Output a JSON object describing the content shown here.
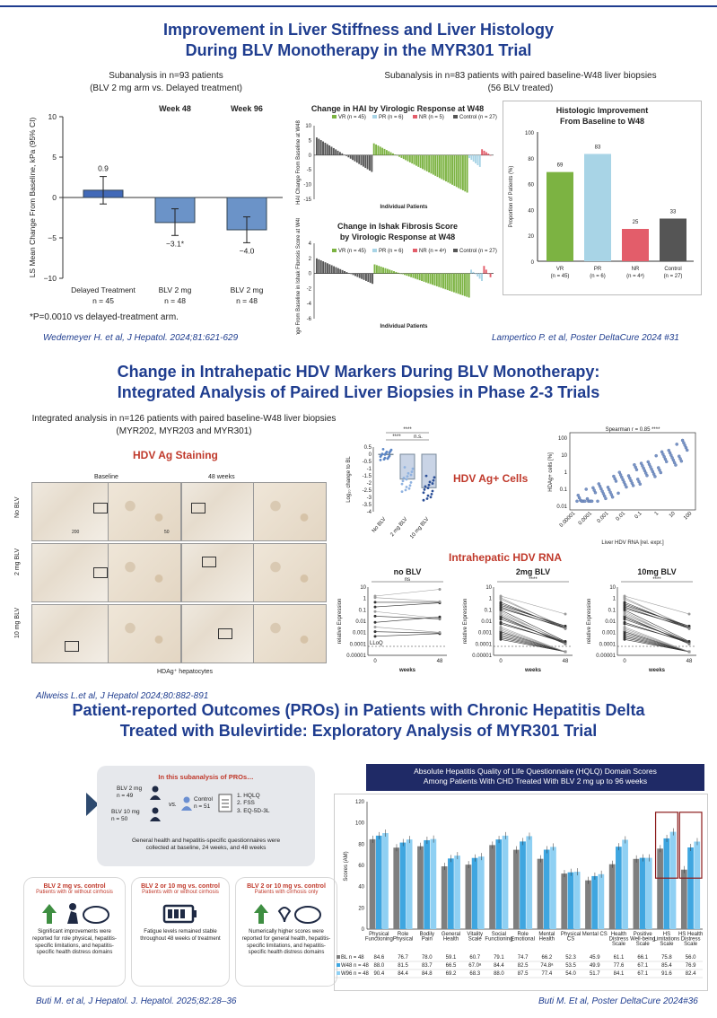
{
  "section1": {
    "title_line1": "Improvement in Liver Stiffness and Liver Histology",
    "title_line2": "During BLV Monotherapy in the MYR301 Trial",
    "left_sub_line1": "Subanalysis in n=93 patients",
    "left_sub_line2": "(BLV 2 mg arm vs. Delayed treatment)",
    "right_sub_line1": "Subanalysis in n=83 patients with paired baseline-W48 liver biopsies",
    "right_sub_line2": "(56 BLV treated)",
    "footnote": "*P=0.0010 vs delayed-treatment arm.",
    "cite_left": "Wedemeyer H. et al, J Hepatol. 2024;81:621-629",
    "cite_right": "Lampertico P. et al, Poster DeltaCure 2024 #31"
  },
  "section2": {
    "title_line1": "Change in Intrahepatic HDV Markers During BLV Monotherapy:",
    "title_line2": "Integrated Analysis of Paired Liver Biopsies in Phase 2-3 Trials",
    "sub_line1": "Integrated analysis in n=126 patients with paired baseline-W48 liver biopsies",
    "sub_line2": "(MYR202, MYR203 and MYR301)",
    "hdv_ag_staining": "HDV Ag Staining",
    "col_baseline": "Baseline",
    "col_48": "48 weeks",
    "row_labels": [
      "No BLV",
      "2 mg BLV",
      "10 mg BLV"
    ],
    "scale1": "200",
    "scale2": "50",
    "caption": "HDAg⁺ hepatocytes",
    "hdv_ag_cells": "HDV Ag+ Cells",
    "intrahepatic_rna": "Intrahepatic HDV RNA",
    "spearman": "Spearman r = 0.85 ****",
    "cite": "Allweiss L.et al, J Hepatol 2024;80:882-891"
  },
  "section3": {
    "title_line1": "Patient-reported Outcomes (PROs) in Patients with Chronic Hepatitis Delta",
    "title_line2": "Treated with Bulevirtide: Exploratory Analysis of MYR301 Trial",
    "box_title": "In this subanalysis of PROs…",
    "blv2": "BLV 2 mg",
    "blv2_n": "n = 49",
    "blv10": "BLV 10 mg",
    "blv10_n": "n = 50",
    "vs": "vs.",
    "control": "Control",
    "control_n": "n = 51",
    "q1": "1.  HQLQ",
    "q2": "2.  FSS",
    "q3": "3.  EQ-5D-3L",
    "box_foot_line1": "General health and hepatitis-specific questionnaires were",
    "box_foot_line2": "collected at baseline, 24 weeks, and 48 weeks",
    "cards": [
      {
        "title": "BLV 2 mg vs. control",
        "sub": "Patients with or without cirrhosis",
        "body": "Significant improvements were reported for role physical, hepatitis-specific limitations, and hepatitis-specific health distress domains"
      },
      {
        "title": "BLV 2 or 10 mg vs. control",
        "sub": "Patients with or without cirrhosis",
        "body": "Fatigue levels remained stable throughout 48 weeks of treatment"
      },
      {
        "title": "BLV 2 or 10 mg vs. control",
        "sub": "Patients with cirrhosis only",
        "body": "Numerically higher scores were reported for general health, hepatitis-specific limitations, and hepatitis-specific health distress domains"
      }
    ],
    "cite_left": "Buti M. et al, J Hepatol. J. Hepatol. 2025;82:28–36",
    "cite_right": "Buti M. Et al, Poster DeltaCure 2024#36"
  },
  "colors": {
    "title_blue": "#1f3d8f",
    "red": "#c0392b",
    "vr_green": "#7cb342",
    "pr_blue": "#a8d4e6",
    "nr_red": "#e35d6a",
    "control_gray": "#555555",
    "bar_blue": "#6b93c8"
  },
  "chart_data": [
    {
      "id": "liver_stiffness",
      "type": "bar",
      "headers": [
        "Week 48",
        "Week 96"
      ],
      "categories": [
        "Delayed Treatment",
        "BLV 2 mg",
        "BLV 2 mg"
      ],
      "n_labels": [
        "n = 45",
        "n = 48",
        "n = 48"
      ],
      "values": [
        0.9,
        -3.1,
        -4.0
      ],
      "value_labels": [
        "0.9",
        "−3.1*",
        "−4.0"
      ],
      "ylabel": "LS Mean Change From Baseline, kPa (95% CI)",
      "ylim": [
        -10,
        10
      ],
      "yticks": [
        "10",
        "5",
        "0",
        "−5",
        "−10"
      ]
    },
    {
      "id": "hai_waterfall",
      "type": "bar",
      "title": "Change in HAI by Virologic Response at W48",
      "legend": [
        "VR (n = 45)",
        "PR (n = 6)",
        "NR (n = 5)",
        "Control (n = 27)"
      ],
      "xlabel": "Individual Patients",
      "ylabel": "HAI Change From Baseline at W48",
      "ylim": [
        -15,
        10
      ],
      "yticks": [
        "10",
        "5",
        "0",
        "-5",
        "-10",
        "-15"
      ]
    },
    {
      "id": "ishak_waterfall",
      "type": "bar",
      "title_line1": "Change in Ishak Fibrosis Score",
      "title_line2": "by Virologic Response at W48",
      "legend": [
        "VR (n = 45)",
        "PR (n = 6)",
        "NR (n = 4ᵃ)",
        "Control (n = 27)"
      ],
      "xlabel": "Individual Patients",
      "ylabel": "Change From Baseline in Ishak Fibrosis Score at W48",
      "ylim": [
        -6,
        4
      ],
      "yticks": [
        "4",
        "2",
        "0",
        "-2",
        "-4",
        "-6"
      ]
    },
    {
      "id": "histologic_improvement",
      "type": "bar",
      "title_line1": "Histologic Improvement",
      "title_line2": "From Baseline to W48",
      "categories": [
        "VR",
        "PR",
        "NR",
        "Control"
      ],
      "n_labels": [
        "(n = 45)",
        "(n = 6)",
        "(n = 4ᵃ)",
        "(n = 27)"
      ],
      "values": [
        69,
        83,
        25,
        33
      ],
      "ylabel": "Proportion of Patients (%)",
      "ylim": [
        0,
        100
      ],
      "yticks": [
        "100",
        "80",
        "60",
        "40",
        "20",
        "0"
      ]
    },
    {
      "id": "hdv_ag_cells",
      "type": "scatter",
      "categories": [
        "No BLV",
        "2 mg BLV",
        "10 mg BLV"
      ],
      "ylabel": "Log₁₀ change to BL",
      "ylim": [
        -4,
        0.5
      ],
      "yticks": [
        "0.5",
        "0",
        "-0.5",
        "-1",
        "-1.5",
        "-2",
        "-2.5",
        "-3",
        "-3.5",
        "-4"
      ],
      "sig": [
        "****",
        "****",
        "n.s."
      ]
    },
    {
      "id": "correlation",
      "type": "scatter",
      "xlabel": "Liver HDV RNA [rel. expr.]",
      "ylabel": "HDAg+ cells [%]",
      "xticks": [
        "0.00001",
        "0.0001",
        "0.001",
        "0.01",
        "0.1",
        "1",
        "10",
        "100"
      ],
      "yticks": [
        "100",
        "10",
        "1",
        "0.1",
        "0.01"
      ]
    },
    {
      "id": "rna_panels",
      "type": "line",
      "panels": [
        "no BLV",
        "2mg BLV",
        "10mg BLV"
      ],
      "sig": [
        "ns",
        "****",
        "****"
      ],
      "xlabel": "weeks",
      "xticks": [
        "0",
        "48"
      ],
      "ylabel": "relative Expression",
      "yticks": [
        "10",
        "1",
        "0.1",
        "0.01",
        "0.001",
        "0.0001",
        "0.00001"
      ],
      "lloq": "LLoQ"
    },
    {
      "id": "hqlq",
      "type": "bar",
      "title_line1": "Absolute Hepatitis Quality of Life Questionnaire (HQLQ) Domain Scores",
      "title_line2": "Among Patients With CHD Treated With BLV 2 mg up to 96 weeks",
      "categories": [
        "Physical Functioning",
        "Role Physical",
        "Bodily Pain",
        "General Health",
        "Vitality Scale",
        "Social Functioning",
        "Role Emotional",
        "Mental Health",
        "Physical CS",
        "Mental CS",
        "Health Distress Scale",
        "Positive Well-being Scale",
        "HS Limitations Scale",
        "HS Health Distress Scale"
      ],
      "ylabel": "Scores (AM)",
      "ylim": [
        0,
        120
      ],
      "yticks": [
        "120",
        "100",
        "80",
        "60",
        "40",
        "20",
        "0"
      ],
      "series": [
        {
          "name": "BL  n = 48",
          "values": [
            84.6,
            76.7,
            78.0,
            59.1,
            60.7,
            79.1,
            74.7,
            66.2,
            52.3,
            45.9,
            61.1,
            66.1,
            75.8,
            56.0
          ]
        },
        {
          "name": "W48 n = 48",
          "values": [
            88.0,
            81.5,
            83.7,
            66.5,
            67.0,
            84.4,
            82.5,
            74.8,
            53.5,
            49.9,
            77.6,
            67.1,
            85.4,
            76.9
          ]
        },
        {
          "name": "W96 n = 48",
          "values": [
            90.4,
            84.4,
            84.8,
            69.2,
            68.3,
            88.0,
            87.5,
            77.4,
            54.0,
            51.7,
            84.1,
            67.1,
            91.6,
            82.4
          ]
        }
      ],
      "row_values": [
        [
          "84.6",
          "76.7",
          "78.0",
          "59.1",
          "60.7",
          "79.1",
          "74.7",
          "66.2",
          "52.3",
          "45.9",
          "61.1",
          "66.1",
          "75.8",
          "56.0"
        ],
        [
          "88.0",
          "81.5",
          "83.7",
          "66.5",
          "67.0ᵃ",
          "84.4",
          "82.5",
          "74.8ᵃ",
          "53.5",
          "49.9",
          "77.6",
          "67.1",
          "85.4",
          "76.9"
        ],
        [
          "90.4",
          "84.4",
          "84.8",
          "69.2",
          "68.3",
          "88.0",
          "87.5",
          "77.4",
          "54.0",
          "51.7",
          "84.1",
          "67.1",
          "91.6",
          "82.4"
        ]
      ]
    }
  ]
}
